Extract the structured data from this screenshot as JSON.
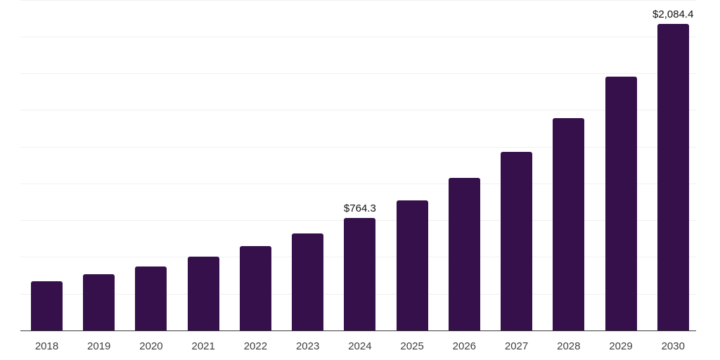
{
  "chart_data": {
    "type": "bar",
    "title": "",
    "categories": [
      "2018",
      "2019",
      "2020",
      "2021",
      "2022",
      "2023",
      "2024",
      "2025",
      "2026",
      "2027",
      "2028",
      "2029",
      "2030"
    ],
    "values": [
      334,
      382,
      434,
      500,
      574,
      660,
      764.3,
      887,
      1036,
      1217,
      1445,
      1728,
      2084.4
    ],
    "data_labels": {
      "2024": "$764.3",
      "2030": "$2,084.4"
    },
    "xlabel": "",
    "ylabel": "",
    "ylim": [
      0,
      2250
    ],
    "gridline_step": 250,
    "grid": "horizontal",
    "legend_position": "none",
    "colors": {
      "bar": "#35104A",
      "gridline": "#F1F1F1",
      "axis_line": "#3C3C3C",
      "x_tick_text": "#3D3D3D",
      "value_label_text": "#111111",
      "background": "#FFFFFF"
    }
  }
}
